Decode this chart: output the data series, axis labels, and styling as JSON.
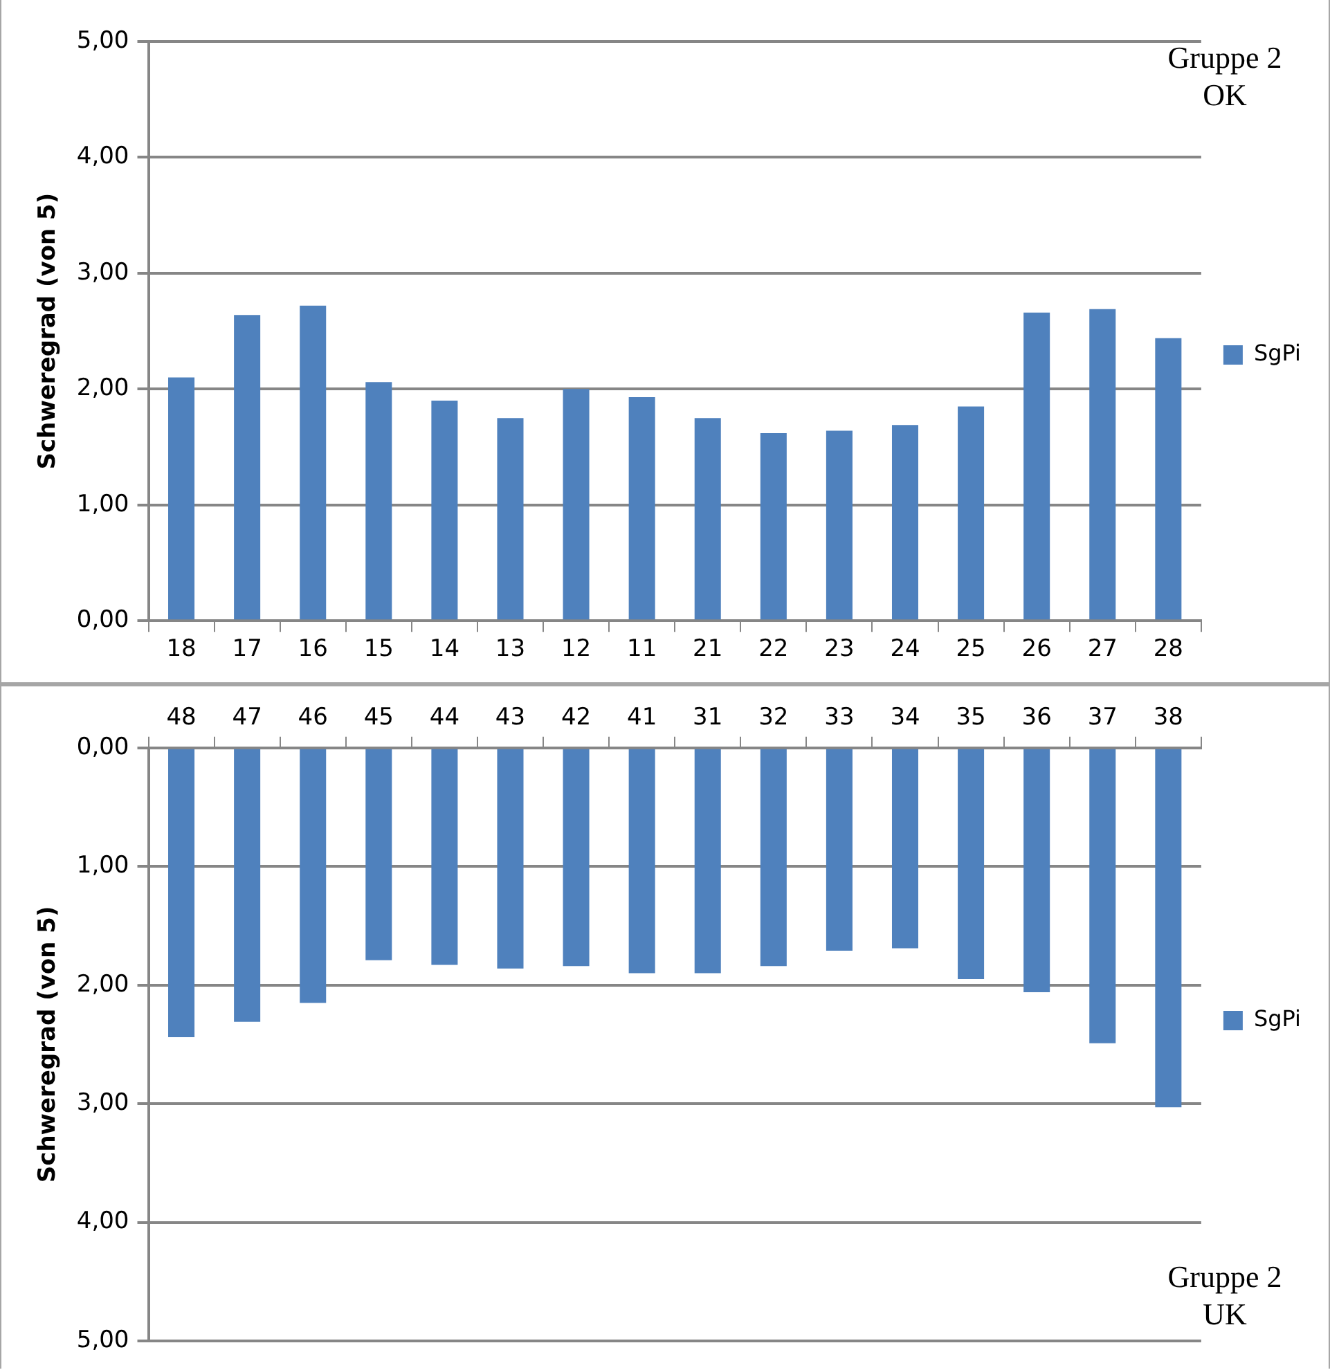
{
  "chart_data": [
    {
      "type": "bar",
      "categories": [
        "18",
        "17",
        "16",
        "15",
        "14",
        "13",
        "12",
        "11",
        "21",
        "22",
        "23",
        "24",
        "25",
        "26",
        "27",
        "28"
      ],
      "series": [
        {
          "name": "SgPi",
          "color": "#4f81bd",
          "values": [
            2.1,
            2.64,
            2.72,
            2.06,
            1.9,
            1.75,
            2.0,
            1.93,
            1.75,
            1.62,
            1.64,
            1.69,
            1.85,
            2.66,
            2.69,
            2.44
          ]
        }
      ],
      "ylabel": "Schweregrad (von 5)",
      "ylim": [
        0,
        5
      ],
      "yticks": [
        {
          "value": 0,
          "label": "0,00"
        },
        {
          "value": 1,
          "label": "1,00"
        },
        {
          "value": 2,
          "label": "2,00"
        },
        {
          "value": 3,
          "label": "3,00"
        },
        {
          "value": 4,
          "label": "4,00"
        },
        {
          "value": 5,
          "label": "5,00"
        }
      ],
      "grid": "y",
      "legend": "right",
      "annotations": [
        "Gruppe 2\nOK"
      ]
    },
    {
      "type": "bar",
      "categories": [
        "48",
        "47",
        "46",
        "45",
        "44",
        "43",
        "42",
        "41",
        "31",
        "32",
        "33",
        "34",
        "35",
        "36",
        "37",
        "38"
      ],
      "series": [
        {
          "name": "SgPi",
          "color": "#4f81bd",
          "values": [
            2.44,
            2.31,
            2.15,
            1.79,
            1.83,
            1.86,
            1.84,
            1.9,
            1.9,
            1.84,
            1.71,
            1.69,
            1.95,
            2.06,
            2.49,
            3.03
          ]
        }
      ],
      "ylabel": "Schweregrad (von 5)",
      "ylim": [
        5,
        0
      ],
      "yticks": [
        {
          "value": 0,
          "label": "0,00"
        },
        {
          "value": 1,
          "label": "1,00"
        },
        {
          "value": 2,
          "label": "2,00"
        },
        {
          "value": 3,
          "label": "3,00"
        },
        {
          "value": 4,
          "label": "4,00"
        },
        {
          "value": 5,
          "label": "5,00"
        }
      ],
      "grid": "y",
      "legend": "right",
      "annotations": [
        "Gruppe 2\nUK"
      ]
    }
  ]
}
